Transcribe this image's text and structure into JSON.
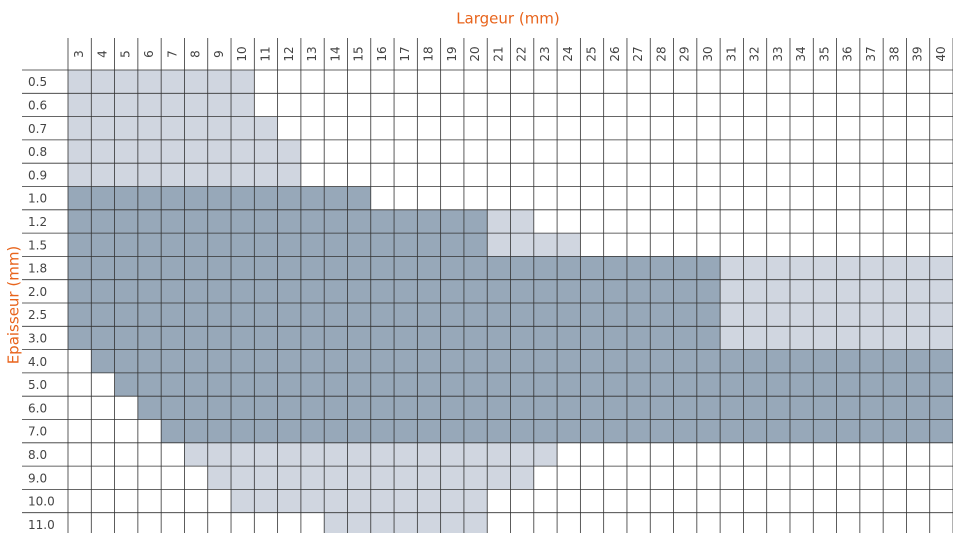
{
  "header": {
    "x_title": "Largeur (mm)",
    "y_title": "Epaisseur (mm)"
  },
  "colors": {
    "l": "#d0d6e0",
    "d": "#97a8b9",
    ".": "#ffffff"
  },
  "columns": [
    3,
    4,
    5,
    6,
    7,
    8,
    9,
    10,
    11,
    12,
    13,
    14,
    15,
    16,
    17,
    18,
    19,
    20,
    21,
    22,
    23,
    24,
    25,
    26,
    27,
    28,
    29,
    30,
    31,
    32,
    33,
    34,
    35,
    36,
    37,
    38,
    39,
    40
  ],
  "rows": [
    {
      "label": "0.5",
      "cells": "llllllll.............................."
    },
    {
      "label": "0.6",
      "cells": "llllllll.............................."
    },
    {
      "label": "0.7",
      "cells": "lllllllll............................."
    },
    {
      "label": "0.8",
      "cells": "llllllllll............................"
    },
    {
      "label": "0.9",
      "cells": "llllllllll............................"
    },
    {
      "label": "1.0",
      "cells": "ddddddddddddd........................."
    },
    {
      "label": "1.2",
      "cells": "ddddddddddddddddddll.................."
    },
    {
      "label": "1.5",
      "cells": "ddddddddddddddddddllll................"
    },
    {
      "label": "1.8",
      "cells": "ddddddddddddddddddddddddddddllllllllll"
    },
    {
      "label": "2.0",
      "cells": "ddddddddddddddddddddddddddddllllllllll"
    },
    {
      "label": "2.5",
      "cells": "ddddddddddddddddddddddddddddllllllllll"
    },
    {
      "label": "3.0",
      "cells": "ddddddddddddddddddddddddddddllllllllll"
    },
    {
      "label": "4.0",
      "cells": ".ddddddddddddddddddddddddddddddddddddd"
    },
    {
      "label": "5.0",
      "cells": "..dddddddddddddddddddddddddddddddddddd"
    },
    {
      "label": "6.0",
      "cells": "...ddddddddddddddddddddddddddddddddddd"
    },
    {
      "label": "7.0",
      "cells": "....dddddddddddddddddddddddddddddddddd"
    },
    {
      "label": "8.0",
      "cells": ".....llllllllllllllll................."
    },
    {
      "label": "9.0",
      "cells": "......llllllllllllll.................."
    },
    {
      "label": "10.0",
      "cells": ".......lllllllllll...................."
    },
    {
      "label": "11.0",
      "cells": "...........lllllll...................."
    }
  ]
}
